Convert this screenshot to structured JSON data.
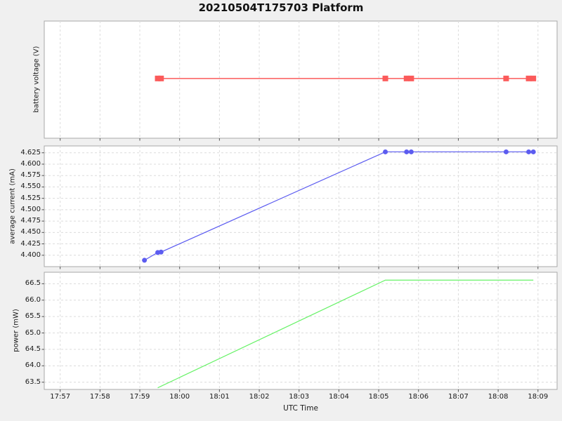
{
  "title": "20210504T175703 Platform",
  "colors": {
    "figure_bg": "#f0f0f0",
    "plot_bg": "#ffffff",
    "grid": "#dcdcdc",
    "spine": "#a9a9a9",
    "tick_mark": "#555555",
    "text": "#1a1a1a",
    "voltage": "#fb5a5a",
    "current": "#5c5cf0",
    "power": "#68f268"
  },
  "x_axis": {
    "label": "UTC Time",
    "tick_labels": [
      "17:57",
      "17:58",
      "17:59",
      "18:00",
      "18:01",
      "18:02",
      "18:03",
      "18:04",
      "18:05",
      "18:06",
      "18:07",
      "18:08",
      "18:09"
    ],
    "range_minutes_from_1757": [
      -0.4,
      12.48
    ]
  },
  "chart_data": [
    {
      "type": "line",
      "title": "",
      "xlabel": "",
      "ylabel": "battery voltage (V)",
      "grid": "vertical dashed only, no y tick labels",
      "ytick_labels": [],
      "series": [
        {
          "name": "battery voltage",
          "color_key": "voltage",
          "marker": "square",
          "line_width": 1.5,
          "times": [
            "17:59:27",
            "17:59:32",
            "18:05:10",
            "18:05:42",
            "18:05:49",
            "18:08:12",
            "18:08:46",
            "18:08:53"
          ],
          "values_note": "constant voltage; y-axis shows no tick labels so numeric value is not readable",
          "y_plot_fraction_from_top": 0.49
        }
      ]
    },
    {
      "type": "line",
      "title": "",
      "xlabel": "",
      "ylabel": "average current (mA)",
      "ylim": [
        4.375,
        4.64
      ],
      "ytick_labels": [
        "4.400",
        "4.425",
        "4.450",
        "4.475",
        "4.500",
        "4.525",
        "4.550",
        "4.575",
        "4.600",
        "4.625"
      ],
      "grid": "dashed both axes",
      "series": [
        {
          "name": "average current",
          "color_key": "current",
          "marker": "circle",
          "line_width": 1.2,
          "times": [
            "17:59:07",
            "17:59:27",
            "17:59:32",
            "18:05:10",
            "18:05:42",
            "18:05:49",
            "18:08:12",
            "18:08:46",
            "18:08:53"
          ],
          "values": [
            4.389,
            4.406,
            4.407,
            4.627,
            4.627,
            4.627,
            4.627,
            4.627,
            4.627
          ]
        }
      ]
    },
    {
      "type": "line",
      "title": "",
      "xlabel": "UTC Time",
      "ylabel": "power (mW)",
      "ylim": [
        63.28,
        66.85
      ],
      "ytick_labels": [
        "63.5",
        "64.0",
        "64.5",
        "65.0",
        "65.5",
        "66.0",
        "66.5"
      ],
      "grid": "dashed both axes",
      "series": [
        {
          "name": "power",
          "color_key": "power",
          "marker": "none",
          "line_width": 1.2,
          "times": [
            "17:59:27",
            "18:05:10",
            "18:08:53"
          ],
          "values": [
            63.33,
            66.61,
            66.61
          ]
        }
      ]
    }
  ]
}
